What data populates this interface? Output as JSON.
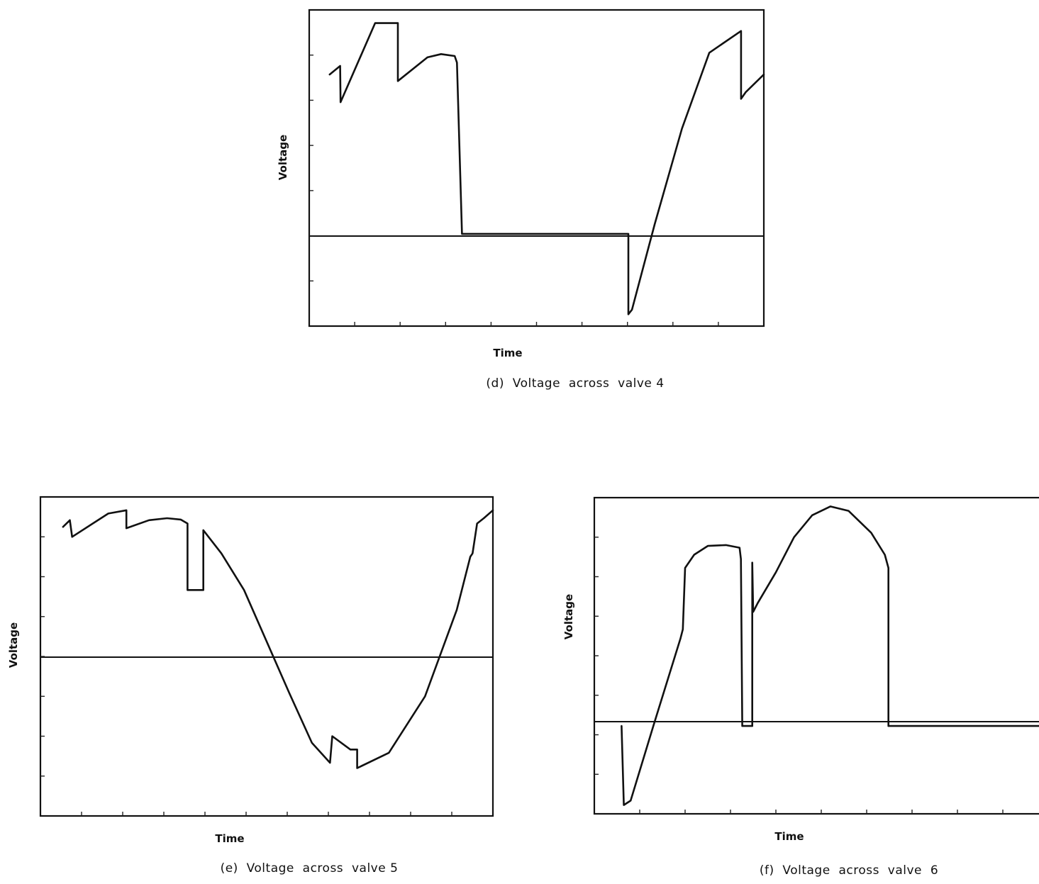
{
  "chart_data": [
    {
      "id": "d",
      "type": "line",
      "caption": "(d)  Voltage  across  valve 4",
      "xlabel": "Time",
      "ylabel": "Voltage",
      "xlim": [
        0,
        100
      ],
      "ylim": [
        -1.4,
        3.4
      ],
      "grid": false,
      "points": [
        [
          4.5,
          2.42
        ],
        [
          6.8,
          2.55
        ],
        [
          6.9,
          2.0
        ],
        [
          14.5,
          3.2
        ],
        [
          19.5,
          3.2
        ],
        [
          19.5,
          2.32
        ],
        [
          26,
          2.68
        ],
        [
          29,
          2.73
        ],
        [
          32,
          2.7
        ],
        [
          32.5,
          2.6
        ],
        [
          33.6,
          0.0
        ],
        [
          70.2,
          0.0
        ],
        [
          70.2,
          -1.22
        ],
        [
          71,
          -1.15
        ],
        [
          76,
          0.15
        ],
        [
          82,
          1.6
        ],
        [
          88,
          2.75
        ],
        [
          95,
          3.08
        ],
        [
          95,
          2.05
        ],
        [
          96,
          2.15
        ],
        [
          100,
          2.42
        ]
      ]
    },
    {
      "id": "e",
      "type": "line",
      "caption": "(e)  Voltage  across  valve 5",
      "xlabel": "Time",
      "ylabel": "Voltage",
      "xlim": [
        0,
        100
      ],
      "ylim": [
        -3.4,
        1.4
      ],
      "grid": false,
      "points": [
        [
          5,
          0.95
        ],
        [
          6.5,
          1.05
        ],
        [
          7,
          0.8
        ],
        [
          15,
          1.15
        ],
        [
          19,
          1.2
        ],
        [
          19,
          0.93
        ],
        [
          24,
          1.05
        ],
        [
          28,
          1.08
        ],
        [
          31,
          1.06
        ],
        [
          32.5,
          1.0
        ],
        [
          32.5,
          0.0
        ],
        [
          36,
          0.0
        ],
        [
          36,
          0.9
        ],
        [
          40,
          0.55
        ],
        [
          45,
          0.0
        ],
        [
          55,
          -1.55
        ],
        [
          60,
          -2.3
        ],
        [
          64,
          -2.6
        ],
        [
          64.5,
          -2.2
        ],
        [
          68.5,
          -2.4
        ],
        [
          70,
          -2.4
        ],
        [
          70,
          -2.68
        ],
        [
          77,
          -2.45
        ],
        [
          85,
          -1.6
        ],
        [
          92,
          -0.3
        ],
        [
          95,
          0.5
        ],
        [
          95.5,
          0.55
        ],
        [
          96.5,
          1.0
        ],
        [
          98,
          1.08
        ],
        [
          100,
          1.2
        ]
      ]
    },
    {
      "id": "f",
      "type": "line",
      "caption": "(f)  Voltage  across  valve  6",
      "xlabel": "Time",
      "ylabel": "Voltage",
      "xlim": [
        0,
        100
      ],
      "ylim": [
        -1.0,
        2.6
      ],
      "grid": false,
      "points": [
        [
          6,
          0.0
        ],
        [
          6.5,
          -0.9
        ],
        [
          8,
          -0.85
        ],
        [
          13,
          0.0
        ],
        [
          19,
          1.0
        ],
        [
          19.5,
          1.1
        ],
        [
          20,
          1.8
        ],
        [
          22,
          1.95
        ],
        [
          25,
          2.05
        ],
        [
          29,
          2.06
        ],
        [
          32,
          2.03
        ],
        [
          32.3,
          1.9
        ],
        [
          32.6,
          0.0
        ],
        [
          34.8,
          0.0
        ],
        [
          34.8,
          1.86
        ],
        [
          35,
          1.3
        ],
        [
          36,
          1.4
        ],
        [
          40,
          1.75
        ],
        [
          44,
          2.15
        ],
        [
          48,
          2.4
        ],
        [
          52,
          2.5
        ],
        [
          56,
          2.45
        ],
        [
          61,
          2.2
        ],
        [
          64,
          1.95
        ],
        [
          64.8,
          1.8
        ],
        [
          64.8,
          0.0
        ],
        [
          100,
          0.0
        ]
      ]
    }
  ]
}
